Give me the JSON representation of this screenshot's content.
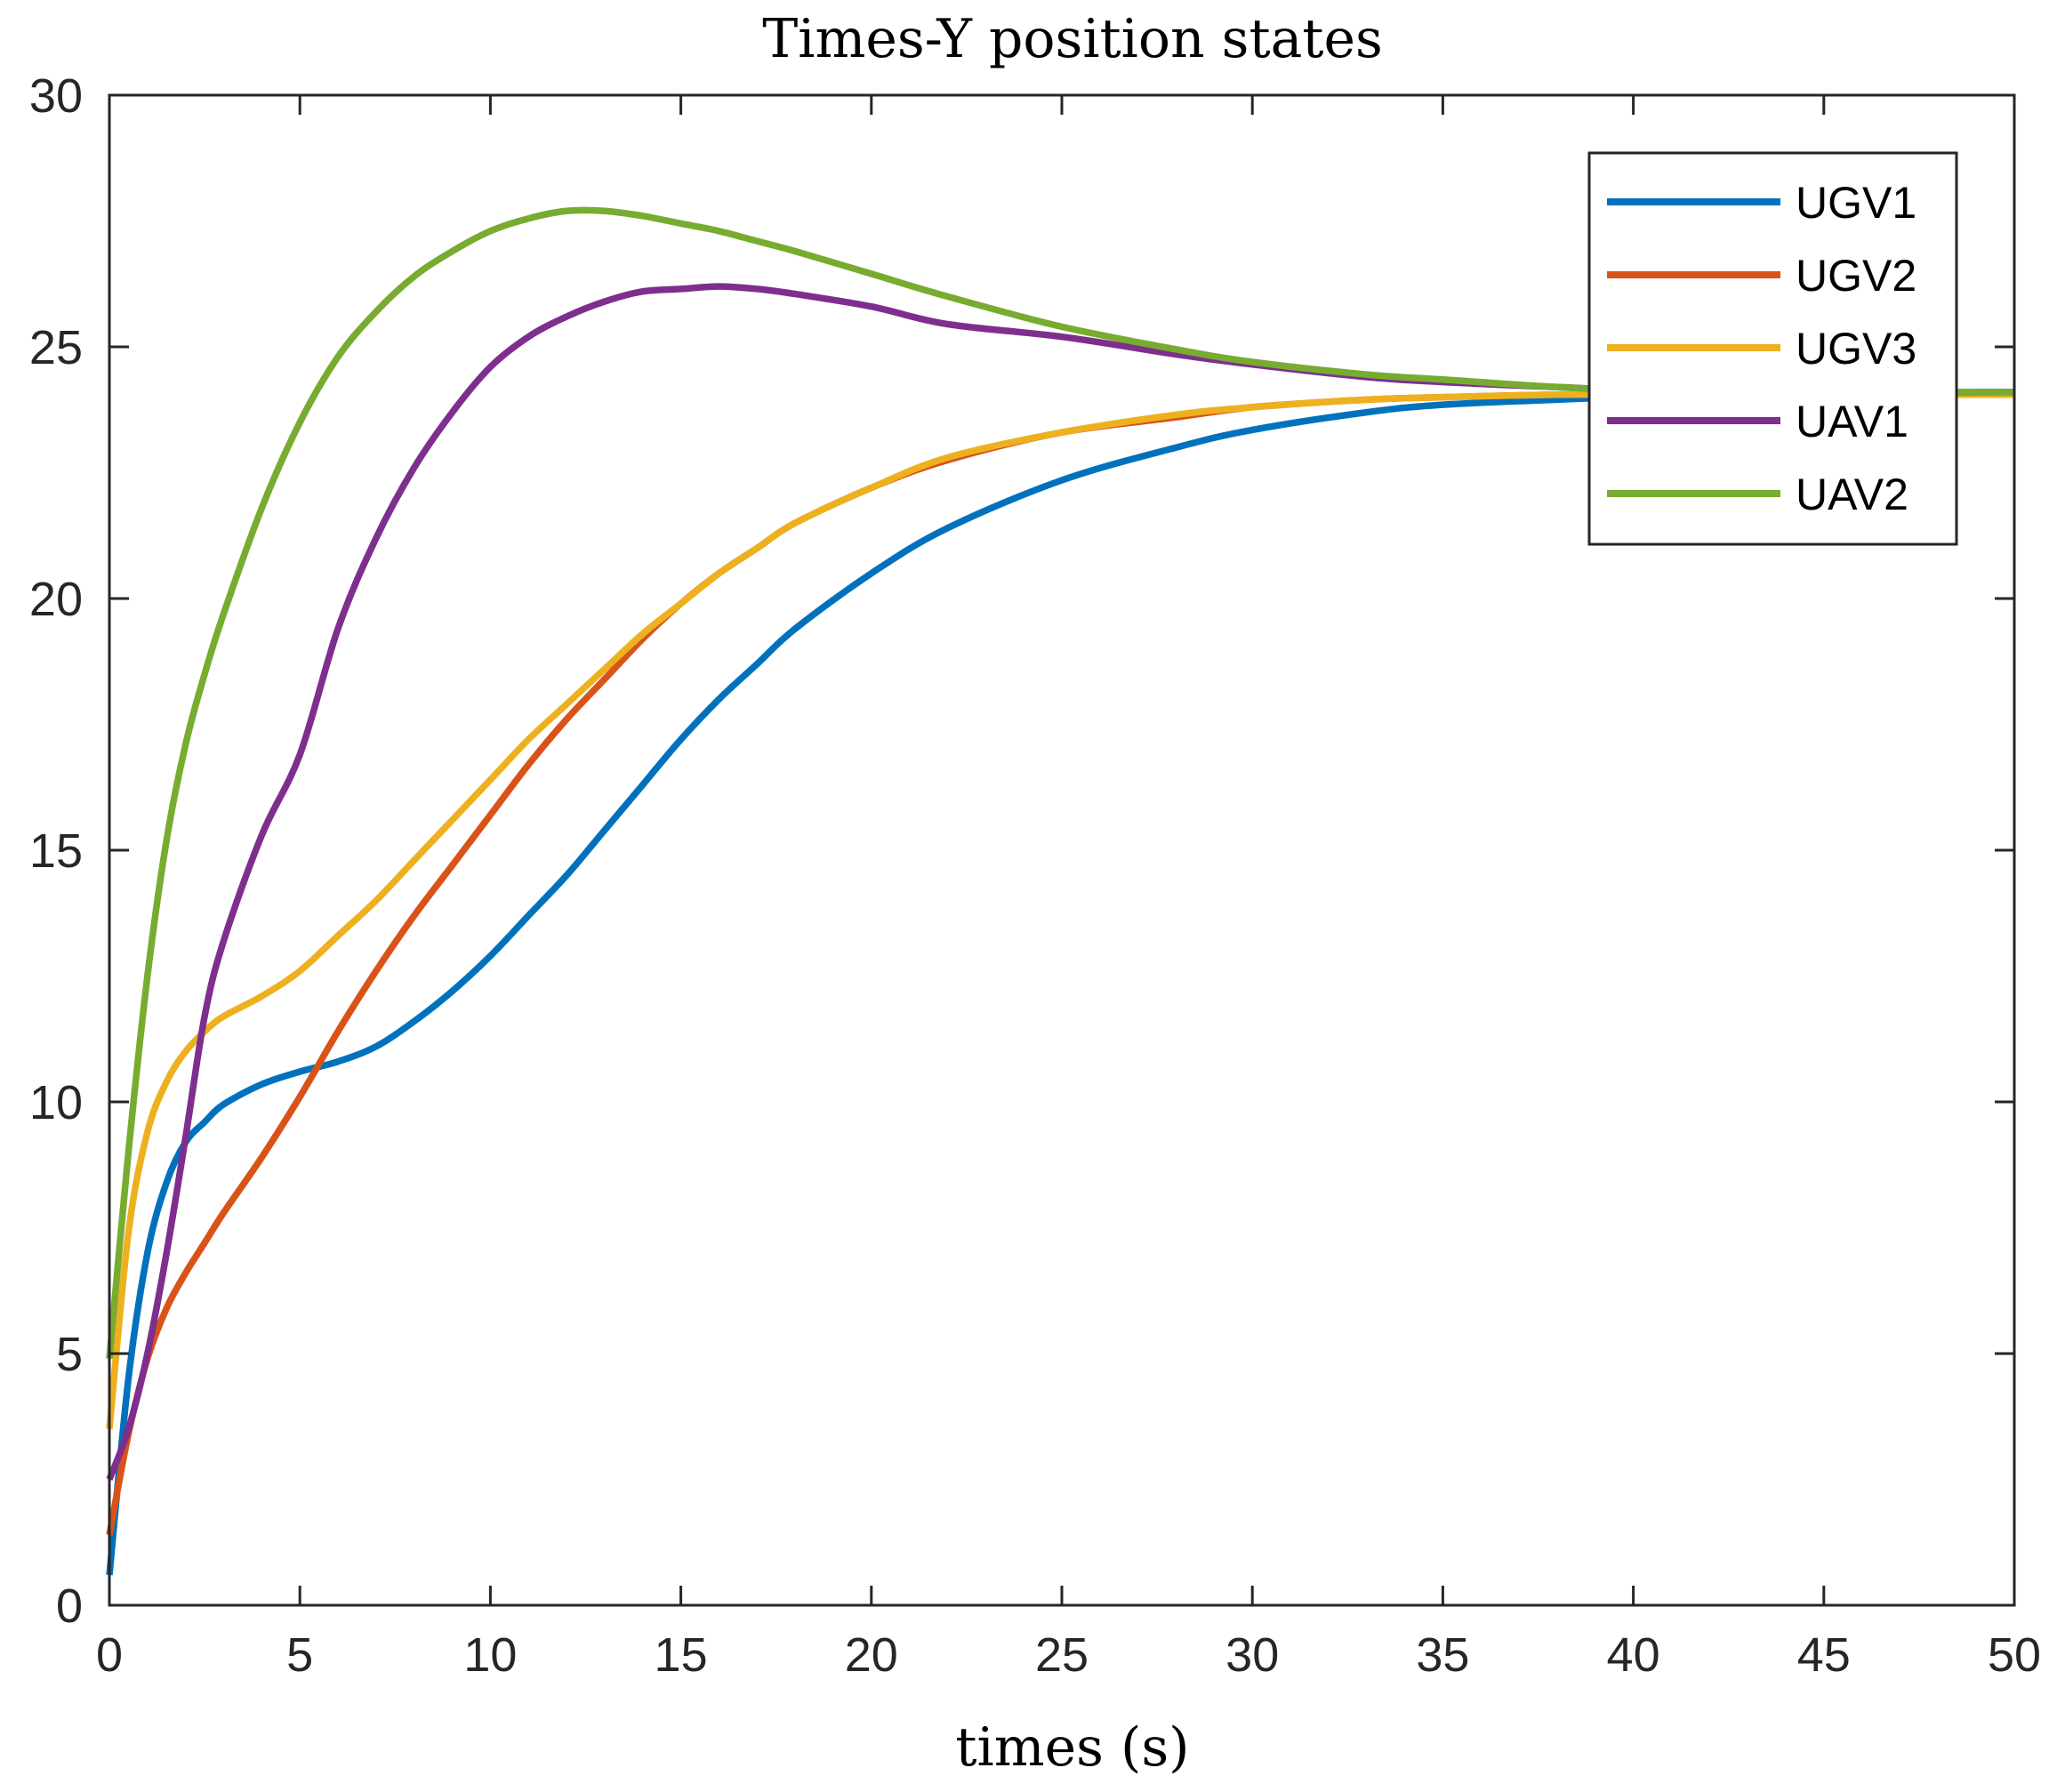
{
  "chart_data": {
    "type": "line",
    "title": "Times-Y position states",
    "xlabel": "times (s)",
    "ylabel": "",
    "xlim": [
      0,
      50
    ],
    "ylim": [
      0,
      30
    ],
    "xticks": [
      0,
      5,
      10,
      15,
      20,
      25,
      30,
      35,
      40,
      45,
      50
    ],
    "yticks": [
      0,
      5,
      10,
      15,
      20,
      25,
      30
    ],
    "grid": false,
    "legend_position": "top-right",
    "x": [
      0,
      0.5,
      1,
      1.5,
      2,
      2.5,
      3,
      4,
      5,
      6,
      7,
      8,
      9,
      10,
      11,
      12,
      13,
      14,
      15,
      16,
      17,
      18,
      20,
      22,
      25,
      28,
      30,
      33,
      35,
      38,
      40,
      45,
      50
    ],
    "series": [
      {
        "name": "UGV1",
        "color": "#0072BD",
        "values": [
          0.6,
          4.5,
          7.0,
          8.4,
          9.2,
          9.6,
          9.95,
          10.35,
          10.6,
          10.8,
          11.1,
          11.6,
          12.2,
          12.9,
          13.7,
          14.5,
          15.4,
          16.3,
          17.2,
          18.0,
          18.7,
          19.4,
          20.5,
          21.4,
          22.35,
          23.0,
          23.35,
          23.7,
          23.85,
          23.95,
          24.0,
          24.05,
          24.05
        ]
      },
      {
        "name": "UGV2",
        "color": "#D95319",
        "values": [
          1.4,
          3.4,
          4.9,
          5.9,
          6.6,
          7.2,
          7.8,
          8.9,
          10.1,
          11.4,
          12.6,
          13.7,
          14.7,
          15.7,
          16.7,
          17.6,
          18.4,
          19.2,
          19.9,
          20.5,
          21.0,
          21.5,
          22.2,
          22.75,
          23.3,
          23.6,
          23.8,
          23.95,
          24.0,
          24.05,
          24.05,
          24.05,
          24.05
        ]
      },
      {
        "name": "UGV3",
        "color": "#EDB120",
        "values": [
          3.5,
          7.4,
          9.4,
          10.4,
          11.0,
          11.4,
          11.7,
          12.1,
          12.6,
          13.3,
          14.0,
          14.8,
          15.6,
          16.4,
          17.2,
          17.9,
          18.6,
          19.3,
          19.9,
          20.5,
          21.0,
          21.5,
          22.2,
          22.8,
          23.3,
          23.65,
          23.8,
          23.95,
          24.0,
          24.05,
          24.05,
          24.05,
          24.05
        ]
      },
      {
        "name": "UAV1",
        "color": "#7E2F8E",
        "values": [
          2.5,
          3.5,
          5.0,
          7.0,
          9.3,
          11.7,
          13.2,
          15.3,
          16.9,
          19.4,
          21.2,
          22.6,
          23.7,
          24.6,
          25.2,
          25.6,
          25.9,
          26.1,
          26.15,
          26.2,
          26.15,
          26.05,
          25.8,
          25.45,
          25.2,
          24.85,
          24.65,
          24.4,
          24.3,
          24.2,
          24.15,
          24.1,
          24.1
        ]
      },
      {
        "name": "UAV2",
        "color": "#77AC30",
        "values": [
          4.9,
          9.0,
          12.5,
          15.2,
          17.1,
          18.5,
          19.7,
          21.8,
          23.5,
          24.8,
          25.7,
          26.4,
          26.9,
          27.3,
          27.55,
          27.7,
          27.7,
          27.6,
          27.45,
          27.3,
          27.1,
          26.9,
          26.45,
          26.0,
          25.4,
          24.95,
          24.7,
          24.45,
          24.35,
          24.2,
          24.15,
          24.1,
          24.1
        ]
      }
    ]
  }
}
